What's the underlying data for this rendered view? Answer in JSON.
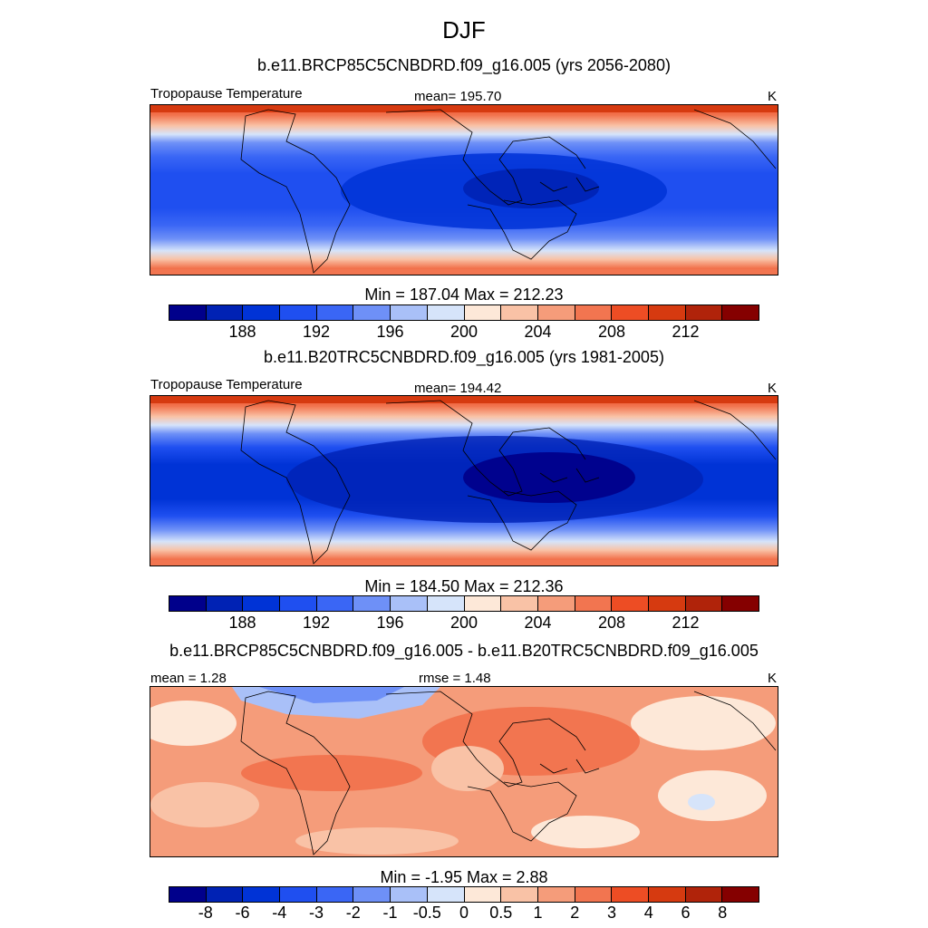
{
  "title": "DJF",
  "units": "K",
  "palette_abs": [
    "#00008b",
    "#0022b4",
    "#0033d6",
    "#1f4ff0",
    "#3a66f5",
    "#6e90f7",
    "#a9c0f8",
    "#d6e4fa",
    "#fde8d8",
    "#f9c2a6",
    "#f59c7a",
    "#f27550",
    "#ed4d24",
    "#d63a10",
    "#b0230a",
    "#850000"
  ],
  "panels": [
    {
      "subtitle": "b.e11.BRCP85C5CNBDRD.f09_g16.005 (yrs 2056-2080)",
      "left_label": "Tropopause Temperature",
      "center_label": "mean= 195.70",
      "right_label": "K",
      "colorbar_title": "Min = 187.04 Max = 212.23",
      "ticks": [
        "188",
        "192",
        "196",
        "200",
        "204",
        "208",
        "212"
      ]
    },
    {
      "subtitle": "b.e11.B20TRC5CNBDRD.f09_g16.005 (yrs 1981-2005)",
      "left_label": "Tropopause Temperature",
      "center_label": "mean= 194.42",
      "right_label": "K",
      "colorbar_title": "Min = 184.50 Max = 212.36",
      "ticks": [
        "188",
        "192",
        "196",
        "200",
        "204",
        "208",
        "212"
      ]
    },
    {
      "subtitle": "b.e11.BRCP85C5CNBDRD.f09_g16.005 - b.e11.B20TRC5CNBDRD.f09_g16.005",
      "left_label": "mean =   1.28",
      "center_label": "rmse =   1.48",
      "right_label": "K",
      "colorbar_title": "Min =  -1.95 Max =   2.88",
      "ticks": [
        "-8",
        "-6",
        "-4",
        "-3",
        "-2",
        "-1",
        "-0.5",
        "0",
        "0.5",
        "1",
        "2",
        "3",
        "4",
        "6",
        "8"
      ]
    }
  ]
}
